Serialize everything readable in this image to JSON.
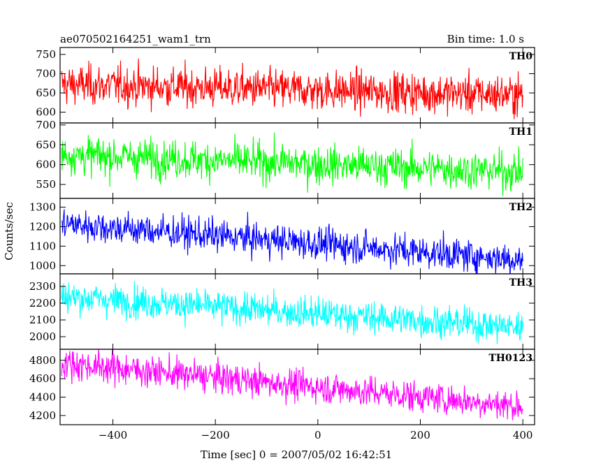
{
  "header": {
    "title": "ae070502164251_wam1_trn",
    "bin_time": "Bin time: 1.0 s"
  },
  "axes": {
    "ylabel": "Counts/sec",
    "xlabel": "Time [sec] 0 = 2007/05/02 16:42:51"
  },
  "chart_data": {
    "type": "line",
    "title": "ae070502164251_wam1_trn",
    "xlabel": "Time [sec] 0 = 2007/05/02 16:42:51",
    "ylabel": "Counts/sec",
    "xlim": [
      -503,
      423
    ],
    "x_start": -500,
    "x_end": 400,
    "x_step": 1,
    "x_ticks": [
      -400,
      -200,
      0,
      200,
      400
    ],
    "grid": false,
    "legend": "none",
    "series": [
      {
        "name": "TH0",
        "color": "#ff0000",
        "ylim": [
          572,
          768
        ],
        "y_ticks": [
          600,
          650,
          700,
          750
        ],
        "trend_start": 672,
        "trend_end": 645,
        "noise": 26
      },
      {
        "name": "TH1",
        "color": "#00ff00",
        "ylim": [
          515,
          705
        ],
        "y_ticks": [
          550,
          600,
          650,
          700
        ],
        "trend_start": 625,
        "trend_end": 582,
        "noise": 24
      },
      {
        "name": "TH2",
        "color": "#0000ff",
        "ylim": [
          958,
          1345
        ],
        "y_ticks": [
          1000,
          1100,
          1200,
          1300
        ],
        "trend_start": 1215,
        "trend_end": 1030,
        "noise": 42
      },
      {
        "name": "TH3",
        "color": "#00ffff",
        "ylim": [
          1925,
          2375
        ],
        "y_ticks": [
          2000,
          2100,
          2200,
          2300
        ],
        "trend_start": 2240,
        "trend_end": 2055,
        "noise": 48
      },
      {
        "name": "TH0123",
        "color": "#ff00ff",
        "ylim": [
          4100,
          4920
        ],
        "y_ticks": [
          4200,
          4400,
          4600,
          4800
        ],
        "trend_start": 4770,
        "trend_end": 4300,
        "noise": 85
      }
    ]
  }
}
